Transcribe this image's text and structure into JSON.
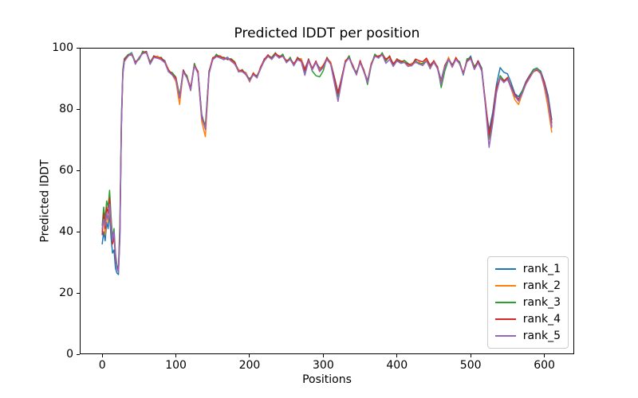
{
  "chart_data": {
    "type": "line",
    "title": "Predicted lDDT per position",
    "xlabel": "Positions",
    "ylabel": "Predicted lDDT",
    "xlim": [
      -30.5,
      640.5
    ],
    "ylim": [
      0,
      100
    ],
    "xticks": [
      0,
      100,
      200,
      300,
      400,
      500,
      600
    ],
    "yticks": [
      0,
      20,
      40,
      60,
      80,
      100
    ],
    "grid": false,
    "legend_position": "lower right",
    "line_width": 1.5,
    "background": "#ffffff",
    "spine_color": "#000000",
    "x": [
      0,
      2,
      4,
      6,
      8,
      10,
      12,
      14,
      16,
      18,
      20,
      22,
      24,
      26,
      28,
      30,
      35,
      40,
      45,
      50,
      55,
      60,
      65,
      70,
      75,
      80,
      85,
      90,
      95,
      100,
      105,
      110,
      115,
      120,
      125,
      130,
      135,
      140,
      145,
      150,
      155,
      160,
      165,
      170,
      175,
      180,
      185,
      190,
      195,
      200,
      205,
      210,
      215,
      220,
      225,
      230,
      235,
      240,
      245,
      250,
      255,
      260,
      265,
      270,
      275,
      280,
      285,
      290,
      295,
      300,
      305,
      310,
      315,
      320,
      325,
      330,
      335,
      340,
      345,
      350,
      355,
      360,
      365,
      370,
      375,
      380,
      385,
      390,
      395,
      400,
      405,
      410,
      415,
      420,
      425,
      430,
      435,
      440,
      445,
      450,
      455,
      460,
      465,
      470,
      475,
      480,
      485,
      490,
      495,
      500,
      505,
      510,
      515,
      520,
      525,
      530,
      535,
      540,
      545,
      550,
      555,
      560,
      565,
      570,
      575,
      580,
      585,
      590,
      595,
      600,
      605,
      610
    ],
    "series": [
      {
        "name": "rank_1",
        "color": "#1f77b4",
        "values": [
          36,
          40,
          37,
          43,
          41,
          46,
          38,
          33,
          34,
          28,
          26.5,
          26,
          38,
          74,
          91.5,
          95.5,
          97.8,
          97.8,
          95.4,
          96.2,
          98.5,
          98.8,
          94.8,
          97.4,
          96.7,
          96.5,
          95.8,
          92.3,
          91.9,
          89.7,
          84,
          92.8,
          90.3,
          86.9,
          94.2,
          92,
          78.3,
          73.8,
          92.4,
          96.2,
          97.5,
          97.3,
          96.3,
          96.9,
          95.7,
          95,
          92.8,
          92.3,
          91.9,
          89.2,
          91.5,
          90.8,
          93.3,
          96.4,
          97.2,
          96.5,
          98.3,
          96.8,
          97.9,
          95.2,
          96.5,
          94.8,
          96.3,
          96.4,
          93.2,
          96,
          93.3,
          95.3,
          93.4,
          93.7,
          96.5,
          95.3,
          90.5,
          85.5,
          90.3,
          95.5,
          97.3,
          93.8,
          91.9,
          95.2,
          92.5,
          89.3,
          94.3,
          97.9,
          96.7,
          98,
          96.3,
          96.8,
          94.9,
          95.7,
          95.5,
          95.8,
          94.3,
          94.9,
          95.2,
          95,
          94.8,
          95.8,
          93.9,
          95.2,
          93.5,
          89.5,
          94.2,
          96.5,
          94.4,
          96.3,
          95.4,
          91.2,
          95.7,
          97.3,
          93.2,
          95.8,
          93.4,
          81.5,
          73,
          79,
          88,
          93.5,
          92,
          91.5,
          88.5,
          85,
          84,
          86,
          89,
          91,
          92.8,
          93.3,
          92.4,
          89,
          84.5,
          76.5
        ]
      },
      {
        "name": "rank_2",
        "color": "#ff7f0e",
        "values": [
          40,
          45,
          39,
          46,
          43,
          48,
          42,
          36,
          39,
          32,
          28,
          27.5,
          41,
          76,
          92,
          96,
          97.2,
          98.3,
          94.7,
          96.9,
          98.2,
          98.5,
          95.3,
          96.7,
          97.3,
          96.2,
          95.5,
          92.9,
          91.2,
          89,
          81.5,
          92.2,
          90.9,
          86,
          94.8,
          91.6,
          76,
          71,
          91.5,
          96.8,
          97.2,
          97.4,
          96.2,
          96.5,
          96.4,
          94.7,
          92.9,
          92.1,
          91.8,
          88.8,
          91.9,
          90.1,
          93.9,
          95.7,
          97.5,
          96.9,
          97.7,
          97.4,
          97.1,
          95.9,
          96.1,
          94.9,
          96.2,
          96.4,
          92.9,
          95.6,
          93.4,
          95.1,
          92.9,
          94.4,
          96.1,
          95.4,
          89.6,
          84.9,
          89.6,
          95.9,
          96.6,
          94.4,
          91.1,
          95.9,
          92.1,
          89,
          94.9,
          97.1,
          97.4,
          97.6,
          96.4,
          96.7,
          94.2,
          96.4,
          95.2,
          95.9,
          94.1,
          94.9,
          95.1,
          95.4,
          94.2,
          96.4,
          93.1,
          95.9,
          93.2,
          88.9,
          93.6,
          96.9,
          93.6,
          96.9,
          94.6,
          91.9,
          95.6,
          96.6,
          93.1,
          95.2,
          92.6,
          81.9,
          70,
          76.5,
          86.9,
          90.1,
          88.6,
          90.4,
          86.6,
          83,
          81.5,
          85,
          88.1,
          90.1,
          92.1,
          92.7,
          91.5,
          87,
          80.5,
          72.5
        ]
      },
      {
        "name": "rank_3",
        "color": "#2ca02c",
        "values": [
          42,
          48,
          44,
          50,
          48,
          53.5,
          45,
          38,
          41,
          33,
          29,
          28,
          43,
          77,
          93,
          96.5,
          97.7,
          98.4,
          95.3,
          96.2,
          98.9,
          98.2,
          95.4,
          97.2,
          96.6,
          96.9,
          95.2,
          92.1,
          91.9,
          90.4,
          84.4,
          92.1,
          90.9,
          86.1,
          94.9,
          91.7,
          77.3,
          74.8,
          92.4,
          96.1,
          97.9,
          96.6,
          96.9,
          96.1,
          96.4,
          95.4,
          92.1,
          92.9,
          91.1,
          89.9,
          91.1,
          90.9,
          93.1,
          96.4,
          97.1,
          96.9,
          98.4,
          96.6,
          97.9,
          95.1,
          96.9,
          94.1,
          96.9,
          95.6,
          92.1,
          96.4,
          92.4,
          90.9,
          90.5,
          92.5,
          96.9,
          94.6,
          89.4,
          84.1,
          90.4,
          95.1,
          97.4,
          93.6,
          91.9,
          95.1,
          92.9,
          88,
          94.1,
          97.9,
          96.6,
          98.4,
          95.6,
          97.4,
          94.1,
          96.4,
          95.1,
          95.9,
          94.9,
          94.1,
          95.9,
          94.6,
          94.9,
          95.6,
          93.9,
          95.1,
          93.9,
          87,
          92.5,
          96.1,
          94.4,
          96.1,
          95.4,
          91.1,
          96.4,
          96.7,
          93.9,
          95.4,
          92.9,
          82.1,
          70.5,
          76,
          86.1,
          90.9,
          89.4,
          89.6,
          87.4,
          84.1,
          82.9,
          85.9,
          88.4,
          90.9,
          92.9,
          93.4,
          92.1,
          88.1,
          83.1,
          74.5
        ]
      },
      {
        "name": "rank_4",
        "color": "#d62728",
        "values": [
          39,
          46,
          41,
          48,
          46,
          51,
          43,
          36,
          38.5,
          31.5,
          28.5,
          27,
          40,
          75,
          92,
          96,
          97.5,
          97.7,
          95.2,
          96.7,
          98.3,
          98.7,
          94.7,
          97.3,
          96.8,
          96.7,
          95.3,
          92.7,
          91.3,
          90.2,
          83.6,
          92.7,
          90.2,
          87,
          94.3,
          92.3,
          77.7,
          73.4,
          92.2,
          96.7,
          97.3,
          97.2,
          96.7,
          96.3,
          96.2,
          95.2,
          92.3,
          92.7,
          91.3,
          89.3,
          91.7,
          90.3,
          93.7,
          96.2,
          97.7,
          96.3,
          98.2,
          97.2,
          97.3,
          95.7,
          96.3,
          94.7,
          96.7,
          95.8,
          92.7,
          96.2,
          93.1,
          95.7,
          92.3,
          94.2,
          96.7,
          94.8,
          90.2,
          85.1,
          90.2,
          95.7,
          96.8,
          94.2,
          91.3,
          95.7,
          92.7,
          88.8,
          94.7,
          97.3,
          97.2,
          97.8,
          96.2,
          97.2,
          94.7,
          96.2,
          95.7,
          95.2,
          94.7,
          94.3,
          96.3,
          95.8,
          95.4,
          96.6,
          94.3,
          95.7,
          93.7,
          88.2,
          94.3,
          96.3,
          94.2,
          96.7,
          94.8,
          91.7,
          95.7,
          96.7,
          93.2,
          95.7,
          92.7,
          82.5,
          71.5,
          77.5,
          87,
          90.2,
          89.2,
          90.2,
          87.2,
          84.7,
          83.2,
          85.2,
          88.7,
          90.7,
          92.3,
          92.8,
          91.8,
          88.7,
          83.2,
          75.5
        ]
      },
      {
        "name": "rank_5",
        "color": "#9467bd",
        "values": [
          41,
          44,
          42,
          46,
          44,
          49,
          44,
          37,
          40,
          32.5,
          28,
          26.8,
          39,
          74.5,
          91.5,
          95.5,
          97.2,
          98.2,
          94.6,
          96.8,
          98.1,
          98.4,
          94.6,
          96.8,
          96.6,
          96.1,
          95.1,
          92.2,
          91.1,
          89.6,
          83.6,
          92.1,
          90.1,
          86.2,
          94.1,
          91.6,
          77.1,
          73.6,
          91.6,
          96.1,
          97.1,
          96.7,
          96.1,
          96.7,
          95.6,
          94.6,
          92.2,
          92.2,
          91.2,
          89.1,
          91.2,
          90.2,
          93.2,
          95.7,
          97.2,
          96.2,
          97.7,
          96.7,
          97.2,
          95.2,
          96.2,
          94.2,
          96.1,
          95.5,
          91,
          95.7,
          92.7,
          95.2,
          92.2,
          93.6,
          96.2,
          94.6,
          88.5,
          82.5,
          89.2,
          95.2,
          96.7,
          93.7,
          91.2,
          95.2,
          92.2,
          88.6,
          94.2,
          97.2,
          96.7,
          97.7,
          94.9,
          96.2,
          93.9,
          95.7,
          94.9,
          95.2,
          93.9,
          94.2,
          95.3,
          94.7,
          94.2,
          95.7,
          93.2,
          95.3,
          93.1,
          88.1,
          93.7,
          96.2,
          93.7,
          96.2,
          94.7,
          91.3,
          95.4,
          96.4,
          92.9,
          95.1,
          92.4,
          81.1,
          67.5,
          75.5,
          85.2,
          90.1,
          88.7,
          89.7,
          86.7,
          84.2,
          82.6,
          85.1,
          88.2,
          90.2,
          92.2,
          93.1,
          91.6,
          87.6,
          82.6,
          74
        ]
      }
    ]
  }
}
